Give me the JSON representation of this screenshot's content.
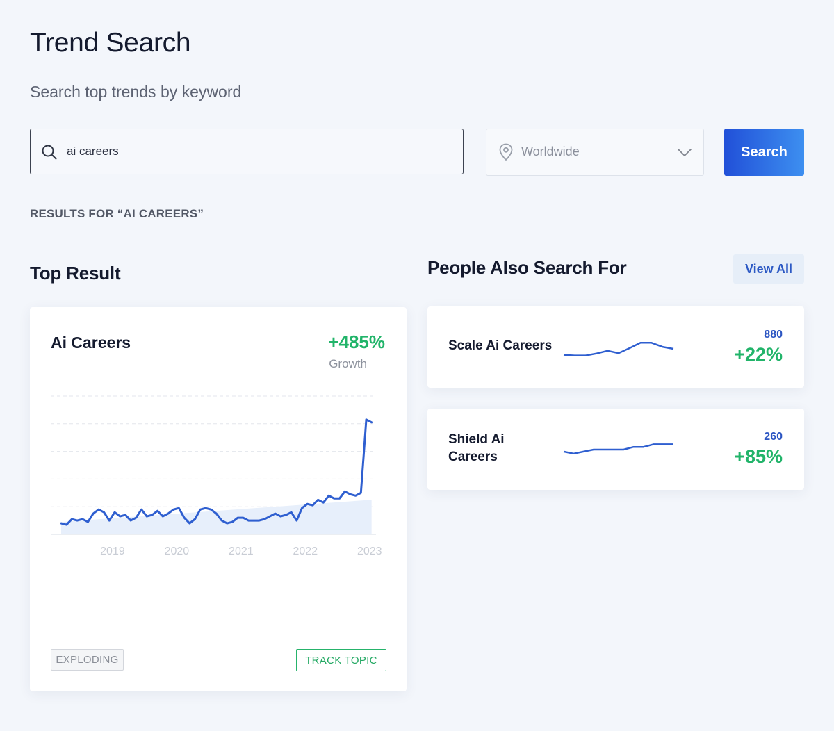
{
  "header": {
    "title": "Trend Search",
    "subtitle": "Search top trends by keyword"
  },
  "search": {
    "value": "ai careers",
    "location": "Worldwide",
    "button_label": "Search"
  },
  "results_label": "RESULTS FOR “AI CAREERS”",
  "top_result": {
    "heading": "Top Result",
    "card": {
      "title": "Ai Careers",
      "growth": "+485%",
      "growth_label": "Growth",
      "status_badge": "EXPLODING",
      "track_label": "TRACK TOPIC"
    }
  },
  "also_search": {
    "heading": "People Also Search For",
    "view_all_label": "View All",
    "items": [
      {
        "name": "Scale Ai Careers",
        "volume": "880",
        "growth": "+22%",
        "sparkline": [
          3,
          2.8,
          2.8,
          3.4,
          4.2,
          3.5,
          5,
          6.6,
          6.6,
          5.4,
          4.8
        ]
      },
      {
        "name": "Shield Ai Careers",
        "volume": "260",
        "growth": "+85%",
        "sparkline": [
          4.6,
          4,
          4.6,
          5.2,
          5.2,
          5.2,
          5.2,
          6,
          6,
          6.8,
          6.8,
          6.8
        ]
      }
    ]
  },
  "colors": {
    "accent_blue": "#2f5fd0",
    "growth_green": "#22b46a"
  },
  "chart_data": {
    "type": "line",
    "title": "",
    "x_tick_labels": [
      "2019",
      "2020",
      "2021",
      "2022",
      "2023"
    ],
    "x_range": [
      2018.2,
      2023.1
    ],
    "y_range": [
      0,
      100
    ],
    "grid": true,
    "series": [
      {
        "values": [
          8,
          7,
          11,
          10,
          11,
          9,
          15,
          18,
          16,
          10,
          16,
          13,
          14,
          10,
          12,
          18,
          13,
          14,
          17,
          13,
          15,
          18,
          19,
          12,
          8,
          11,
          18,
          19,
          18,
          15,
          10,
          8,
          9,
          12,
          12,
          10,
          10,
          10,
          11,
          13,
          15,
          13,
          14,
          16,
          10,
          19,
          22,
          21,
          25,
          23,
          28,
          26,
          26,
          31,
          29,
          28,
          30,
          83,
          81
        ],
        "x_start": 2018.2,
        "x_step": 0.0833
      }
    ],
    "trend_band": [
      9,
      25
    ]
  }
}
